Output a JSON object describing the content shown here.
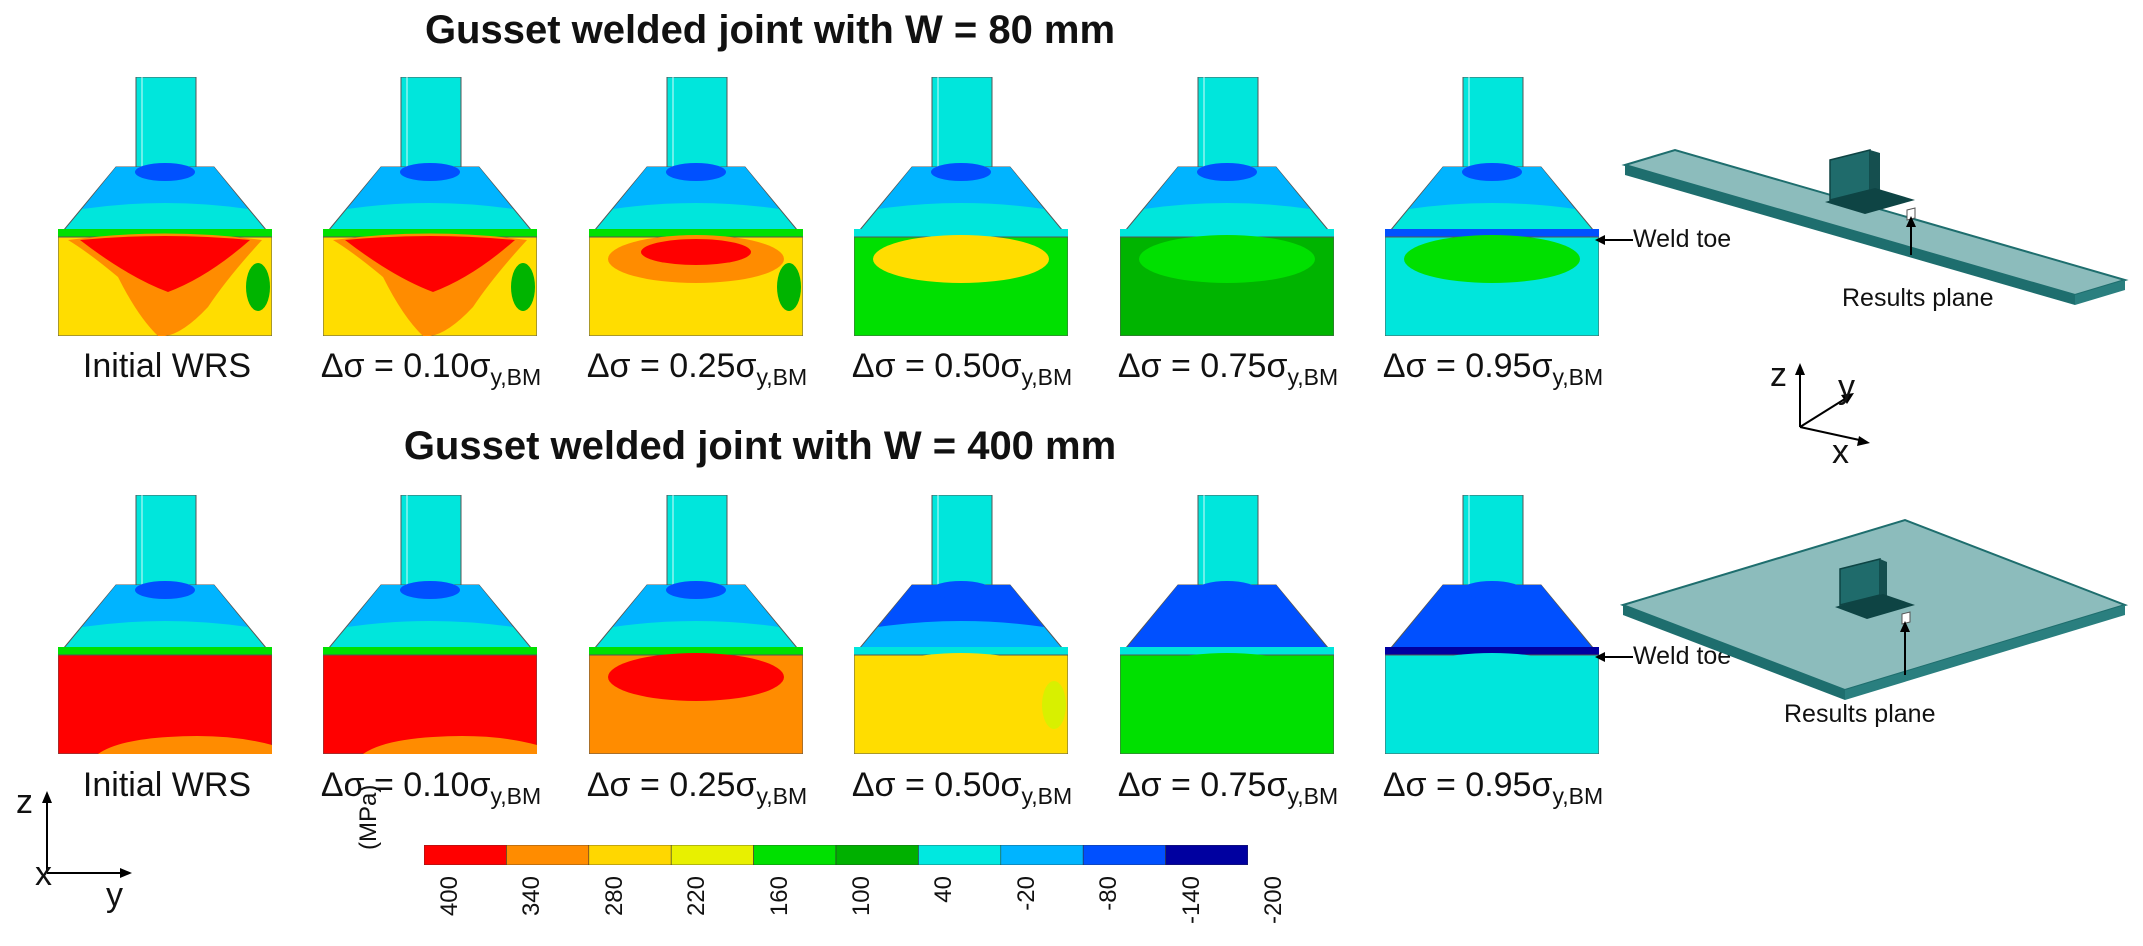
{
  "titles": {
    "top": "Gusset welded joint with W = 80 mm",
    "bottom": "Gusset welded joint with W = 400 mm"
  },
  "panel_labels": [
    {
      "main": "Initial WRS",
      "sub": ""
    },
    {
      "main": "Δσ = 0.10σ",
      "sub": "y,BM"
    },
    {
      "main": "Δσ = 0.25σ",
      "sub": "y,BM"
    },
    {
      "main": "Δσ = 0.50σ",
      "sub": "y,BM"
    },
    {
      "main": "Δσ = 0.75σ",
      "sub": "y,BM"
    },
    {
      "main": "Δσ = 0.95σ",
      "sub": "y,BM"
    }
  ],
  "annotations": {
    "weld_toe": "Weld toe",
    "results_plane": "Results plane"
  },
  "axes": {
    "iso": {
      "z": "z",
      "y": "y",
      "x": "x"
    },
    "section": {
      "z": "z",
      "x": "x",
      "y": "y"
    }
  },
  "colorbar": {
    "unit": "(MPa)",
    "ticks": [
      "400",
      "340",
      "280",
      "220",
      "160",
      "100",
      "40",
      "-20",
      "-80",
      "-140",
      "-200"
    ],
    "colors": [
      "#ff0000",
      "#ff8c00",
      "#ffd700",
      "#e8f000",
      "#00e000",
      "#00b000",
      "#00e8e0",
      "#00b4ff",
      "#0050ff",
      "#0000a0"
    ]
  },
  "colors": {
    "red": "#ff0000",
    "orange": "#ff8c00",
    "yellow": "#ffdd00",
    "lime": "#d8f000",
    "green": "#00e000",
    "darkgreen": "#00b400",
    "cyan": "#00e6dc",
    "lightblue": "#00b4ff",
    "blue": "#0050ff",
    "navy": "#0000a0",
    "plate": "#8cbcbc",
    "plate_edge": "#1e6e6e"
  }
}
